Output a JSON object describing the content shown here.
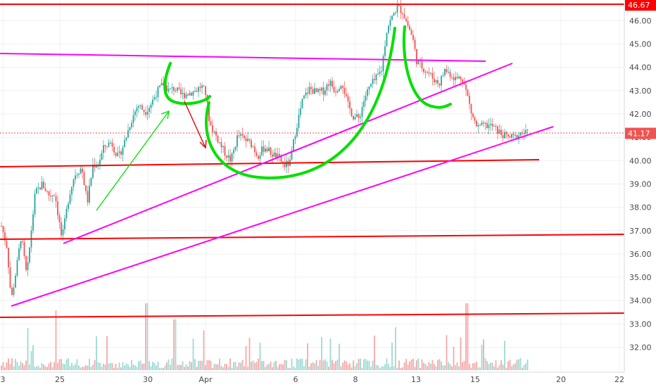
{
  "chart_data": {
    "type": "candlestick",
    "y_ticks": [
      "32.00",
      "33.00",
      "34.00",
      "35.00",
      "36.00",
      "37.00",
      "38.00",
      "39.00",
      "40.00",
      "41.00",
      "42.00",
      "43.00",
      "44.00",
      "45.00",
      "46.00"
    ],
    "ylim": [
      31.2,
      46.8
    ],
    "x_ticks": [
      "3",
      "25",
      "30",
      "Apr",
      "6",
      "8",
      "13",
      "15",
      "20",
      "22"
    ],
    "grid": true,
    "colors": {
      "up": "#26a69a",
      "down": "#ef5350",
      "resistance": "#ff0000",
      "trend": "#ff00ff",
      "annotation": "#00dd00",
      "arrow_down": "#ee1111",
      "last_price": "#ef5350"
    },
    "price_tags": [
      {
        "label": "46.67",
        "value": 46.67,
        "color": "#ff0000"
      },
      {
        "label": "41.17",
        "value": 41.17,
        "color": "#ef5350"
      }
    ],
    "horizontal_levels": [
      46.67,
      40.0,
      36.8,
      33.5
    ],
    "candles_summary": {
      "start_price": 37.1,
      "low": 33.8,
      "peak": 46.6,
      "last": 41.17
    }
  }
}
